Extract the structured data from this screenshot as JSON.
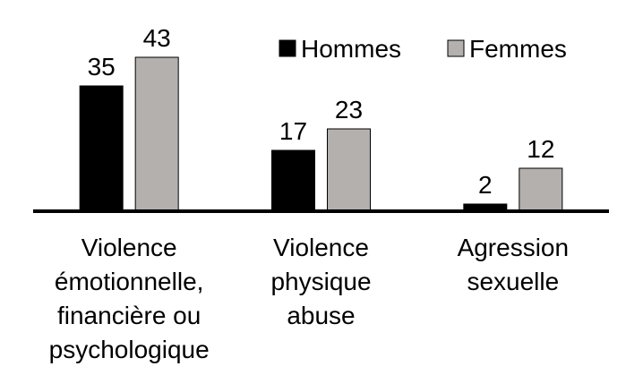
{
  "chart_data": {
    "type": "bar",
    "categories": [
      "Violence\némotionnelle,\nfinancière ou\npsychologique",
      "Violence\nphysique\nabuse",
      "Agression\nsexuelle"
    ],
    "series": [
      {
        "name": "Hommes",
        "color": "#000000",
        "values": [
          35,
          17,
          2
        ]
      },
      {
        "name": "Femmes",
        "color": "#b3b0ae",
        "values": [
          43,
          23,
          12
        ]
      }
    ],
    "ylim": [
      0,
      50
    ]
  }
}
